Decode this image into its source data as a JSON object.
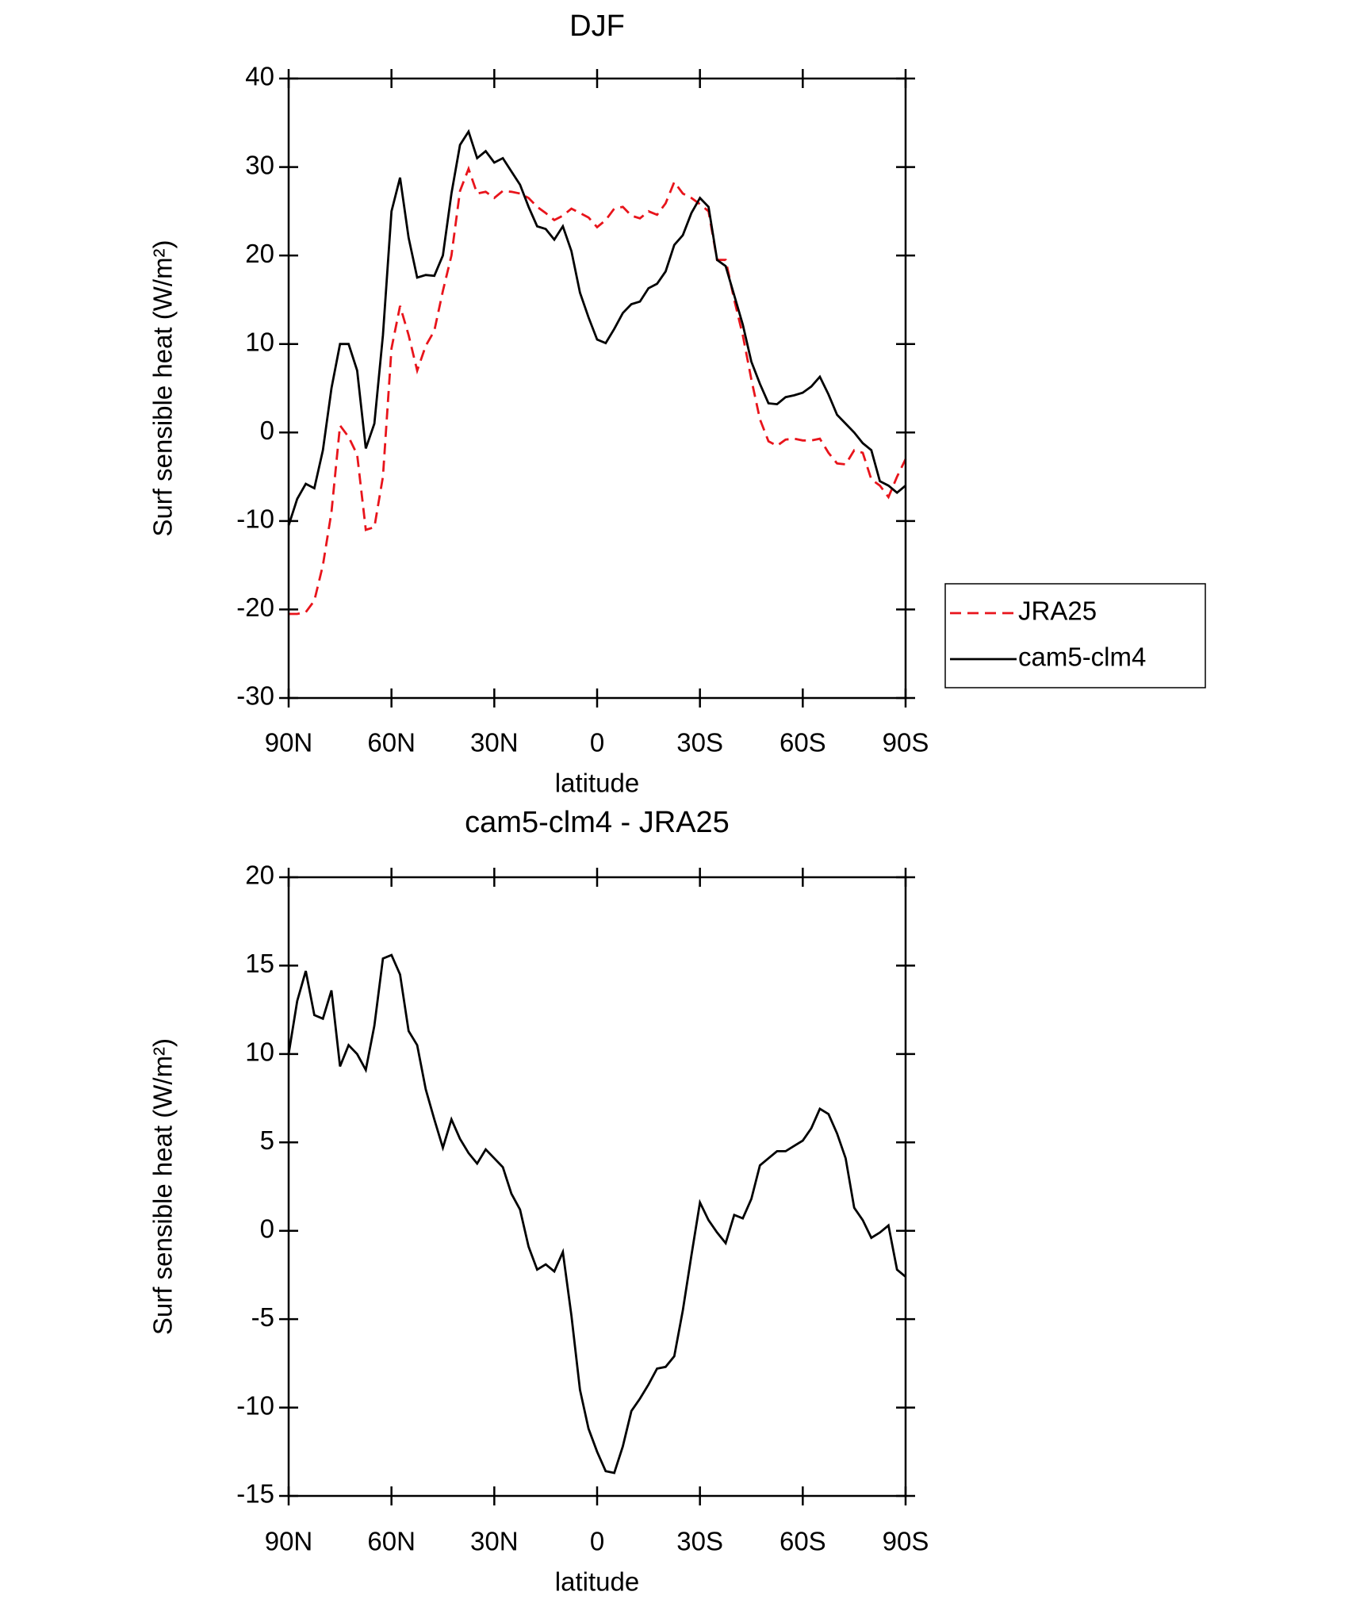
{
  "chart_data": [
    {
      "type": "line",
      "title": "DJF",
      "xlabel": "latitude",
      "ylabel": "Surf sensible heat (W/m²)",
      "x": [
        90,
        87.5,
        85,
        82.5,
        80,
        77.5,
        75,
        72.5,
        70,
        67.5,
        65,
        62.5,
        60,
        57.5,
        55,
        52.5,
        50,
        47.5,
        45,
        42.5,
        40,
        37.5,
        35,
        32.5,
        30,
        27.5,
        25,
        22.5,
        20,
        17.5,
        15,
        12.5,
        10,
        7.5,
        5,
        2.5,
        0,
        -2.5,
        -5,
        -7.5,
        -10,
        -12.5,
        -15,
        -17.5,
        -20,
        -22.5,
        -25,
        -27.5,
        -30,
        -32.5,
        -35,
        -37.5,
        -40,
        -42.5,
        -45,
        -47.5,
        -50,
        -52.5,
        -55,
        -57.5,
        -60,
        -62.5,
        -65,
        -67.5,
        -70,
        -72.5,
        -75,
        -77.5,
        -80,
        -82.5,
        -85,
        -87.5,
        -90
      ],
      "series": [
        {
          "name": "JRA25",
          "color": "#e8141b",
          "linestyle": "dashed",
          "values": [
            -20.5,
            -20.5,
            -20.3,
            -19,
            -15,
            -9,
            0.8,
            -0.5,
            -2.5,
            -11,
            -10.7,
            -5,
            9.5,
            14.3,
            11,
            7,
            9.8,
            11.5,
            16,
            20,
            27.3,
            29.8,
            27,
            27.2,
            26.5,
            27.3,
            27.2,
            27,
            26.5,
            25.5,
            24.8,
            24,
            24.5,
            25.3,
            24.8,
            24.3,
            23.2,
            24,
            25.3,
            25.5,
            24.5,
            24.2,
            25,
            24.6,
            25.9,
            28.3,
            27,
            26.5,
            25.8,
            25,
            19.5,
            19.5,
            15,
            11,
            6,
            1.5,
            -1,
            -1.5,
            -0.8,
            -0.7,
            -0.9,
            -0.9,
            -0.7,
            -2.3,
            -3.5,
            -3.6,
            -2,
            -2.3,
            -5.3,
            -6,
            -7.3,
            -5,
            -3
          ]
        },
        {
          "name": "cam5-clm4",
          "color": "#000000",
          "linestyle": "solid",
          "values": [
            -10.5,
            -7.5,
            -5.8,
            -6.3,
            -2,
            5,
            10,
            10,
            7,
            -1.8,
            1,
            11,
            25,
            28.8,
            22,
            17.5,
            17.8,
            17.7,
            20,
            27,
            32.5,
            34,
            31,
            31.8,
            30.5,
            31,
            29.5,
            28,
            25.5,
            23.3,
            23,
            21.8,
            23.3,
            20.5,
            15.8,
            13,
            10.5,
            10.1,
            11.7,
            13.5,
            14.5,
            14.8,
            16.3,
            16.8,
            18.2,
            21.2,
            22.3,
            24.8,
            26.5,
            25.5,
            19.5,
            18.8,
            15.5,
            12.2,
            8,
            5.5,
            3.3,
            3.2,
            4,
            4.2,
            4.5,
            5.2,
            6.3,
            4.3,
            2,
            1,
            0,
            -1.2,
            -2,
            -5.5,
            -6,
            -6.8,
            -6
          ]
        }
      ],
      "xlim": [
        90,
        -90
      ],
      "xticks": [
        {
          "value": 90,
          "label": "90N"
        },
        {
          "value": 60,
          "label": "60N"
        },
        {
          "value": 30,
          "label": "30N"
        },
        0,
        {
          "value": -30,
          "label": "30S"
        },
        {
          "value": -60,
          "label": "60S"
        },
        {
          "value": -90,
          "label": "90S"
        }
      ],
      "ylim": [
        -30,
        40
      ],
      "yticks": [
        -30,
        -20,
        -10,
        0,
        10,
        20,
        30,
        40
      ],
      "legend": "right"
    },
    {
      "type": "line",
      "title": "cam5-clm4 - JRA25",
      "xlabel": "latitude",
      "ylabel": "Surf sensible heat (W/m²)",
      "x": [
        90,
        87.5,
        85,
        82.5,
        80,
        77.5,
        75,
        72.5,
        70,
        67.5,
        65,
        62.5,
        60,
        57.5,
        55,
        52.5,
        50,
        47.5,
        45,
        42.5,
        40,
        37.5,
        35,
        32.5,
        30,
        27.5,
        25,
        22.5,
        20,
        17.5,
        15,
        12.5,
        10,
        7.5,
        5,
        2.5,
        0,
        -2.5,
        -5,
        -7.5,
        -10,
        -12.5,
        -15,
        -17.5,
        -20,
        -22.5,
        -25,
        -27.5,
        -30,
        -32.5,
        -35,
        -37.5,
        -40,
        -42.5,
        -45,
        -47.5,
        -50,
        -52.5,
        -55,
        -57.5,
        -60,
        -62.5,
        -65,
        -67.5,
        -70,
        -72.5,
        -75,
        -77.5,
        -80,
        -82.5,
        -85,
        -87.5,
        -90
      ],
      "series": [
        {
          "color": "#000000",
          "linestyle": "solid",
          "values": [
            10,
            13,
            14.7,
            12.2,
            12,
            13.6,
            9.3,
            10.5,
            10,
            9.1,
            11.6,
            15.4,
            15.6,
            14.5,
            11.3,
            10.5,
            8,
            6.3,
            4.7,
            6.3,
            5.2,
            4.4,
            3.8,
            4.6,
            4.1,
            3.6,
            2.1,
            1.2,
            -0.9,
            -2.2,
            -1.9,
            -2.3,
            -1.2,
            -4.8,
            -9,
            -11.2,
            -12.5,
            -13.6,
            -13.7,
            -12.2,
            -10.2,
            -9.5,
            -8.7,
            -7.8,
            -7.7,
            -7.1,
            -4.5,
            -1.4,
            1.6,
            0.6,
            -0.1,
            -0.7,
            0.9,
            0.7,
            1.8,
            3.7,
            4.1,
            4.5,
            4.5,
            4.8,
            5.1,
            5.8,
            6.9,
            6.6,
            5.5,
            4.1,
            1.3,
            0.6,
            -0.4,
            -0.1,
            0.3,
            -2.2,
            -2.6
          ]
        }
      ],
      "xlim": [
        90,
        -90
      ],
      "xticks": [
        {
          "value": 90,
          "label": "90N"
        },
        {
          "value": 60,
          "label": "60N"
        },
        {
          "value": 30,
          "label": "30N"
        },
        0,
        {
          "value": -30,
          "label": "30S"
        },
        {
          "value": -60,
          "label": "60S"
        },
        {
          "value": -90,
          "label": "90S"
        }
      ],
      "ylim": [
        -15,
        20
      ],
      "yticks": [
        -15,
        -10,
        -5,
        0,
        5,
        10,
        15,
        20
      ]
    }
  ]
}
